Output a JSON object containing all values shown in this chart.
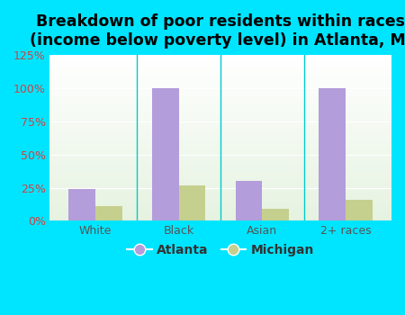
{
  "title": "Breakdown of poor residents within races\n(income below poverty level) in Atlanta, MI",
  "categories": [
    "White",
    "Black",
    "Asian",
    "2+ races"
  ],
  "atlanta_values": [
    24,
    100,
    30,
    100
  ],
  "michigan_values": [
    11,
    27,
    9,
    16
  ],
  "atlanta_color": "#b39ddb",
  "michigan_color": "#c5d08e",
  "ylim": [
    0,
    125
  ],
  "yticks": [
    0,
    25,
    50,
    75,
    100,
    125
  ],
  "ytick_labels": [
    "0%",
    "25%",
    "50%",
    "75%",
    "100%",
    "125%"
  ],
  "legend_labels": [
    "Atlanta",
    "Michigan"
  ],
  "bar_width": 0.32,
  "outer_background": "#00e5ff",
  "title_fontsize": 12.5,
  "title_fontweight": "bold",
  "tick_fontsize": 9,
  "legend_fontsize": 10
}
